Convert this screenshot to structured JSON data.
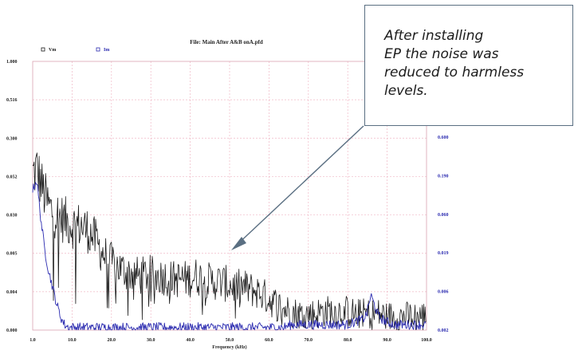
{
  "chart_data": {
    "type": "line",
    "title": "File: Main After A&B onA.pfd",
    "xlabel": "Frequency (kHz)",
    "x_ticks": [
      "1.0",
      "10.0",
      "20.0",
      "30.0",
      "40.0",
      "50.0",
      "60.0",
      "70.0",
      "80.0",
      "90.0",
      "100.0"
    ],
    "xlim": [
      1,
      100
    ],
    "y_left_ticks": [
      "0.000",
      "0.004",
      "0.005",
      "0.030",
      "0.052",
      "0.300",
      "0.516",
      "1.000"
    ],
    "y_right_ticks": [
      "0.002",
      "0.006",
      "0.019",
      "0.060",
      "0.190",
      "0.600"
    ],
    "grid": true,
    "legend_placement": "top-left",
    "series": [
      {
        "name": "Vm",
        "color": "#1a1a1a",
        "axis": "left",
        "x": [
          1,
          2,
          3,
          4,
          5,
          6,
          7,
          8,
          9,
          10,
          11,
          12,
          13,
          14,
          15,
          16,
          17,
          18,
          19,
          20,
          22,
          24,
          26,
          28,
          30,
          32,
          34,
          36,
          38,
          40,
          42,
          44,
          46,
          48,
          50,
          52,
          54,
          56,
          58,
          60,
          62,
          64,
          66,
          68,
          70,
          72,
          74,
          76,
          78,
          80,
          82,
          84,
          86,
          88,
          90,
          92,
          94,
          96,
          98,
          100
        ],
        "level": [
          0.58,
          0.6,
          0.55,
          0.5,
          0.46,
          0.44,
          0.43,
          0.42,
          0.41,
          0.4,
          0.39,
          0.39,
          0.39,
          0.38,
          0.37,
          0.35,
          0.33,
          0.3,
          0.28,
          0.26,
          0.24,
          0.22,
          0.21,
          0.2,
          0.21,
          0.2,
          0.2,
          0.19,
          0.19,
          0.19,
          0.2,
          0.19,
          0.18,
          0.18,
          0.17,
          0.16,
          0.16,
          0.15,
          0.14,
          0.12,
          0.1,
          0.08,
          0.07,
          0.06,
          0.06,
          0.06,
          0.07,
          0.07,
          0.07,
          0.07,
          0.06,
          0.06,
          0.06,
          0.06,
          0.05,
          0.05,
          0.05,
          0.05,
          0.05,
          0.05
        ]
      },
      {
        "name": "Im",
        "color": "#2b2bb0",
        "axis": "right",
        "x": [
          1,
          2,
          3,
          4,
          5,
          6,
          7,
          8,
          9,
          10,
          11,
          12,
          13,
          14,
          15,
          16,
          17,
          18,
          19,
          20,
          22,
          24,
          26,
          28,
          30,
          32,
          34,
          36,
          38,
          40,
          42,
          44,
          46,
          48,
          50,
          52,
          54,
          56,
          58,
          60,
          62,
          64,
          66,
          68,
          70,
          72,
          74,
          76,
          78,
          80,
          82,
          84,
          85,
          86,
          87,
          88,
          90,
          92,
          94,
          96,
          98,
          100
        ],
        "level": [
          0.52,
          0.56,
          0.42,
          0.3,
          0.22,
          0.16,
          0.1,
          0.05,
          0.02,
          0.01,
          0.01,
          0.01,
          0.01,
          0.01,
          0.01,
          0.01,
          0.01,
          0.01,
          0.01,
          0.01,
          0.01,
          0.01,
          0.01,
          0.01,
          0.01,
          0.01,
          0.01,
          0.01,
          0.01,
          0.01,
          0.01,
          0.01,
          0.01,
          0.01,
          0.01,
          0.01,
          0.01,
          0.01,
          0.01,
          0.01,
          0.01,
          0.01,
          0.02,
          0.02,
          0.02,
          0.02,
          0.02,
          0.02,
          0.02,
          0.02,
          0.03,
          0.04,
          0.06,
          0.13,
          0.09,
          0.05,
          0.03,
          0.02,
          0.02,
          0.02,
          0.02,
          0.02
        ]
      }
    ],
    "annotation": {
      "lines": [
        "After installing",
        "EP the noise was",
        "reduced to harmless",
        "levels."
      ]
    }
  }
}
